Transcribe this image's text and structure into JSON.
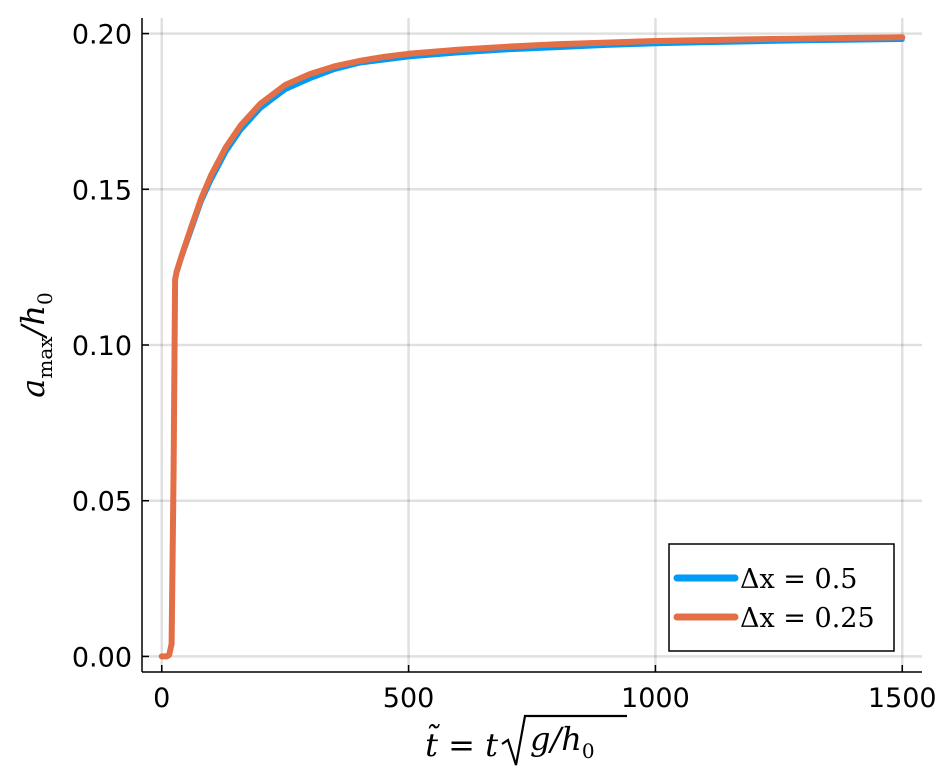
{
  "chart_data": {
    "type": "line",
    "xlabel": {
      "pre": "t̃ = t",
      "radicand": "g/h",
      "sub": "0"
    },
    "ylabel": {
      "pre": "a",
      "sub": "max",
      "post": "/h",
      "sub2": "0"
    },
    "xlim": [
      -40,
      1540
    ],
    "ylim": [
      -0.005,
      0.205
    ],
    "xticks": [
      0,
      500,
      1000,
      1500
    ],
    "xtick_labels": [
      "0",
      "500",
      "1000",
      "1500"
    ],
    "yticks": [
      0.0,
      0.05,
      0.1,
      0.15,
      0.2
    ],
    "ytick_labels": [
      "0.00",
      "0.05",
      "0.10",
      "0.15",
      "0.20"
    ],
    "grid": true,
    "legend_position": "bottom-right",
    "series": [
      {
        "name": "Δx = 0.5",
        "color": "#009AF9",
        "x": [
          0,
          10,
          15,
          20,
          24,
          27,
          30,
          40,
          60,
          80,
          100,
          130,
          160,
          200,
          250,
          300,
          350,
          400,
          450,
          500,
          600,
          700,
          800,
          900,
          1000,
          1100,
          1200,
          1300,
          1400,
          1500
        ],
        "y": [
          0.0,
          0.0,
          0.0005,
          0.004,
          0.06,
          0.121,
          0.123,
          0.128,
          0.137,
          0.146,
          0.153,
          0.162,
          0.169,
          0.176,
          0.182,
          0.1855,
          0.1885,
          0.1905,
          0.1915,
          0.1925,
          0.1938,
          0.1948,
          0.1955,
          0.1962,
          0.1967,
          0.1971,
          0.1974,
          0.1977,
          0.1979,
          0.1981
        ]
      },
      {
        "name": "Δx = 0.25",
        "color": "#E26F46",
        "x": [
          0,
          10,
          15,
          20,
          24,
          27,
          30,
          40,
          60,
          80,
          100,
          130,
          160,
          200,
          250,
          300,
          350,
          400,
          450,
          500,
          600,
          700,
          800,
          900,
          1000,
          1100,
          1200,
          1300,
          1400,
          1500
        ],
        "y": [
          0.0,
          0.0,
          0.0005,
          0.004,
          0.06,
          0.121,
          0.1235,
          0.1285,
          0.138,
          0.147,
          0.1545,
          0.1635,
          0.1705,
          0.1775,
          0.1835,
          0.187,
          0.1895,
          0.1912,
          0.1925,
          0.1935,
          0.1948,
          0.1958,
          0.1966,
          0.1971,
          0.1976,
          0.1979,
          0.1982,
          0.1984,
          0.1986,
          0.1988
        ]
      }
    ]
  }
}
